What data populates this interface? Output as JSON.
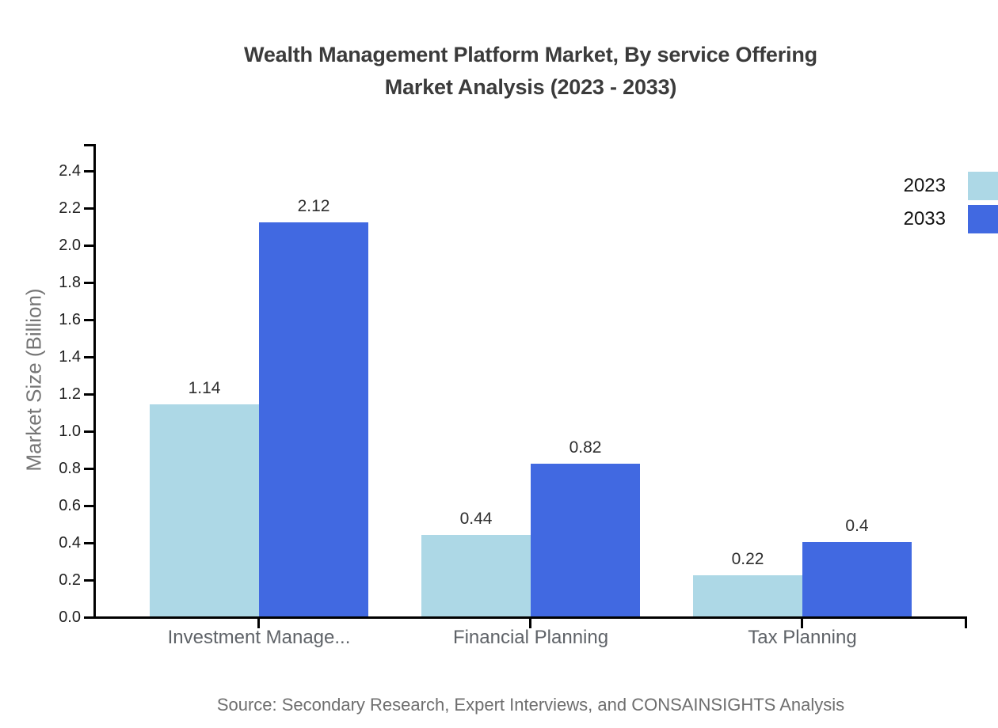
{
  "title": {
    "line1": "Wealth Management Platform Market, By service Offering",
    "line2": "Market Analysis (2023 - 2033)"
  },
  "source": "Source: Secondary Research, Expert Interviews, and CONSAINSIGHTS Analysis",
  "chart_data": {
    "type": "bar",
    "title": "Wealth Management Platform Market, By service Offering Market Analysis (2023 - 2033)",
    "categories": [
      "Investment Manage...",
      "Financial Planning",
      "Tax Planning"
    ],
    "series": [
      {
        "name": "2023",
        "color": "#ADD8E6",
        "values": [
          1.14,
          0.44,
          0.22
        ],
        "labels": [
          "1.14",
          "0.44",
          "0.22"
        ]
      },
      {
        "name": "2033",
        "color": "#4169E1",
        "values": [
          2.12,
          0.82,
          0.4
        ],
        "labels": [
          "2.12",
          "0.82",
          "0.4"
        ]
      }
    ],
    "xlabel": "",
    "ylabel": "Market Size (Billion)",
    "ylim": [
      0,
      2.5
    ],
    "ytick_step": 0.2,
    "yticks": [
      "0.0",
      "0.2",
      "0.4",
      "0.6",
      "0.8",
      "1.0",
      "1.2",
      "1.4",
      "1.6",
      "1.8",
      "2.0",
      "2.2",
      "2.4"
    ],
    "grid": false,
    "legend_position": "top-right",
    "value_labels_shown": true
  },
  "colors": {
    "series_2023": "#ADD8E6",
    "series_2033": "#4169E1",
    "axis": "#000000",
    "title_text": "#3B3B3B",
    "tick_label": "#1F1F1F",
    "category_label": "#5F6368",
    "axis_title": "#757575",
    "source_text": "#6E6E6E"
  }
}
